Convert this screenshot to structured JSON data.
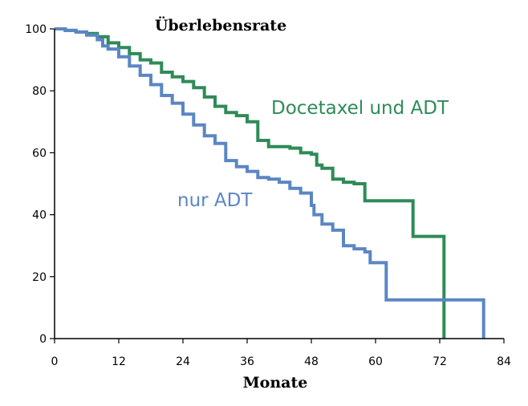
{
  "chart_data": {
    "type": "line",
    "subtype": "step",
    "title": "Überlebensrate",
    "xlabel": "Monate",
    "ylabel": "",
    "xlim": [
      0,
      84
    ],
    "ylim": [
      0,
      100
    ],
    "xticks": [
      0,
      12,
      24,
      36,
      48,
      60,
      72,
      84
    ],
    "yticks": [
      0,
      20,
      40,
      60,
      80,
      100
    ],
    "grid": false,
    "series": [
      {
        "name": "Docetaxel und ADT",
        "color": "#2e8b57",
        "x": [
          0,
          2,
          4,
          6,
          8,
          10,
          12,
          14,
          16,
          18,
          20,
          22,
          24,
          26,
          28,
          30,
          32,
          34,
          36,
          38,
          40,
          42,
          44,
          46,
          48,
          49,
          50,
          52,
          54,
          56,
          58,
          60,
          62,
          64,
          67,
          70,
          72,
          72.8
        ],
        "y": [
          100,
          99.5,
          99,
          98.5,
          97.5,
          95.5,
          94,
          92,
          90,
          89,
          86,
          84.5,
          83,
          81,
          78,
          75,
          73,
          72,
          70,
          64,
          62,
          62,
          61.5,
          60,
          59.5,
          56,
          55,
          51.5,
          50.5,
          50,
          44.5,
          44.5,
          44.5,
          44.5,
          33,
          33,
          33,
          0
        ]
      },
      {
        "name": "nur ADT",
        "color": "#5b86c4",
        "x": [
          0,
          2,
          4,
          6,
          8,
          9,
          10,
          12,
          14,
          16,
          18,
          20,
          22,
          24,
          26,
          28,
          30,
          32,
          34,
          36,
          38,
          40,
          42,
          44,
          46,
          48,
          48.5,
          50,
          52,
          54,
          56,
          58,
          59,
          60,
          62,
          64,
          70,
          76,
          80,
          80.2
        ],
        "y": [
          100,
          99.5,
          99,
          98,
          96.5,
          94.5,
          93.5,
          91,
          88,
          85,
          82,
          78.5,
          76,
          72.5,
          69,
          65.5,
          63,
          57.5,
          55.5,
          54,
          52,
          51.5,
          50.5,
          48.5,
          47,
          43,
          40,
          37,
          35,
          30,
          29,
          28,
          24.5,
          24.5,
          12.5,
          12.5,
          12.5,
          12.5,
          12.5,
          0
        ]
      }
    ],
    "annotations": [
      {
        "text": "Docetaxel und ADT",
        "color": "#2e8b57"
      },
      {
        "text": "nur ADT",
        "color": "#5b86c4"
      }
    ]
  }
}
